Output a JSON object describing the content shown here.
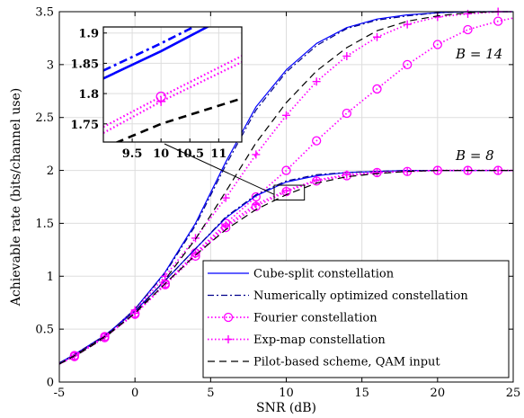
{
  "chart_data": {
    "type": "line",
    "xlabel": "SNR (dB)",
    "ylabel": "Achievable rate (bits/channel use)",
    "xlim": [
      -5,
      25
    ],
    "ylim": [
      0,
      3.5
    ],
    "xticks": [
      -5,
      0,
      5,
      10,
      15,
      20,
      25
    ],
    "yticks": [
      0,
      0.5,
      1,
      1.5,
      2,
      2.5,
      3,
      3.5
    ],
    "xtick_labels": [
      "-5",
      "0",
      "5",
      "10",
      "15",
      "20",
      "25"
    ],
    "ytick_labels": [
      "0",
      "0.5",
      "1",
      "1.5",
      "2",
      "2.5",
      "3",
      "3.5"
    ],
    "grid": true,
    "legend_position": "bottom-right",
    "annotations": [
      {
        "text": "B = 14",
        "x": 21.2,
        "y": 3.06
      },
      {
        "text": "B = 8",
        "x": 21.2,
        "y": 2.1
      }
    ],
    "series": [
      {
        "name": "Cube-split constellation",
        "group": "B = 14",
        "style": "solid",
        "color": "#0000ff",
        "marker": "none",
        "x": [
          -5,
          -4,
          -2,
          0,
          2,
          4,
          6,
          8,
          10,
          12,
          14,
          16,
          18,
          20,
          22,
          24,
          25
        ],
        "y": [
          0.18,
          0.25,
          0.43,
          0.69,
          1.04,
          1.5,
          2.08,
          2.6,
          2.95,
          3.2,
          3.35,
          3.43,
          3.47,
          3.49,
          3.5,
          3.5,
          3.5
        ]
      },
      {
        "name": "Numerically optimized constellation",
        "group": "B = 14",
        "style": "dashdot",
        "color": "#00008b",
        "marker": "none",
        "x": [
          -5,
          -4,
          -2,
          0,
          2,
          4,
          6,
          8,
          10,
          12,
          14,
          16,
          18,
          20,
          22,
          24,
          25
        ],
        "y": [
          0.18,
          0.25,
          0.43,
          0.69,
          1.03,
          1.48,
          2.05,
          2.57,
          2.93,
          3.18,
          3.34,
          3.42,
          3.46,
          3.49,
          3.5,
          3.5,
          3.5
        ]
      },
      {
        "name": "Fourier constellation",
        "group": "B = 14",
        "style": "dotted",
        "color": "#ff00ff",
        "marker": "circle",
        "x": [
          -5,
          -4,
          -2,
          0,
          2,
          4,
          6,
          8,
          10,
          12,
          14,
          16,
          18,
          20,
          22,
          24,
          25
        ],
        "y": [
          0.17,
          0.24,
          0.42,
          0.65,
          0.93,
          1.22,
          1.5,
          1.75,
          2.0,
          2.28,
          2.54,
          2.77,
          3.0,
          3.19,
          3.33,
          3.41,
          3.44
        ]
      },
      {
        "name": "Exp-map constellation",
        "group": "B = 14",
        "style": "dotted",
        "color": "#ff00ff",
        "marker": "plus",
        "x": [
          -5,
          -4,
          -2,
          0,
          2,
          4,
          6,
          8,
          10,
          12,
          14,
          16,
          18,
          20,
          22,
          24,
          25
        ],
        "y": [
          0.18,
          0.25,
          0.43,
          0.68,
          1.0,
          1.36,
          1.74,
          2.15,
          2.52,
          2.84,
          3.08,
          3.26,
          3.38,
          3.45,
          3.48,
          3.5,
          3.5
        ]
      },
      {
        "name": "Pilot-based scheme, QAM input",
        "group": "B = 14",
        "style": "dashed",
        "color": "#000000",
        "marker": "none",
        "x": [
          -5,
          -4,
          -2,
          0,
          2,
          4,
          6,
          8,
          10,
          12,
          14,
          16,
          18,
          20,
          22,
          24,
          25
        ],
        "y": [
          0.17,
          0.24,
          0.42,
          0.65,
          0.97,
          1.35,
          1.8,
          2.26,
          2.64,
          2.94,
          3.16,
          3.32,
          3.41,
          3.46,
          3.49,
          3.5,
          3.5
        ]
      },
      {
        "name": "Cube-split constellation",
        "group": "B = 8",
        "style": "solid",
        "color": "#0000ff",
        "marker": "none",
        "x": [
          -5,
          -4,
          -2,
          0,
          2,
          4,
          6,
          8,
          10,
          12,
          14,
          16,
          18,
          20,
          22,
          24,
          25
        ],
        "y": [
          0.18,
          0.26,
          0.44,
          0.67,
          0.96,
          1.26,
          1.55,
          1.76,
          1.89,
          1.95,
          1.98,
          1.99,
          2.0,
          2.0,
          2.0,
          2.0,
          2.0
        ]
      },
      {
        "name": "Numerically optimized constellation",
        "group": "B = 8",
        "style": "dashdot",
        "color": "#00008b",
        "marker": "none",
        "x": [
          -5,
          -4,
          -2,
          0,
          2,
          4,
          6,
          8,
          10,
          12,
          14,
          16,
          18,
          20,
          22,
          24,
          25
        ],
        "y": [
          0.18,
          0.26,
          0.44,
          0.67,
          0.96,
          1.26,
          1.56,
          1.77,
          1.9,
          1.96,
          1.98,
          1.99,
          2.0,
          2.0,
          2.0,
          2.0,
          2.0
        ]
      },
      {
        "name": "Fourier constellation",
        "group": "B = 8",
        "style": "dotted",
        "color": "#ff00ff",
        "marker": "circle",
        "x": [
          -5,
          -4,
          -2,
          0,
          2,
          4,
          6,
          8,
          10,
          12,
          14,
          16,
          18,
          20,
          22,
          24,
          25
        ],
        "y": [
          0.17,
          0.25,
          0.43,
          0.64,
          0.92,
          1.19,
          1.46,
          1.66,
          1.8,
          1.9,
          1.95,
          1.98,
          1.99,
          2.0,
          2.0,
          2.0,
          2.0
        ]
      },
      {
        "name": "Exp-map constellation",
        "group": "B = 8",
        "style": "dotted",
        "color": "#ff00ff",
        "marker": "plus",
        "x": [
          -5,
          -4,
          -2,
          0,
          2,
          4,
          6,
          8,
          10,
          12,
          14,
          16,
          18,
          20,
          22,
          24,
          25
        ],
        "y": [
          0.17,
          0.25,
          0.43,
          0.65,
          0.93,
          1.21,
          1.48,
          1.68,
          1.81,
          1.91,
          1.96,
          1.98,
          1.99,
          2.0,
          2.0,
          2.0,
          2.0
        ]
      },
      {
        "name": "Pilot-based scheme, QAM input",
        "group": "B = 8",
        "style": "dashed",
        "color": "#000000",
        "marker": "none",
        "x": [
          -5,
          -4,
          -2,
          0,
          2,
          4,
          6,
          8,
          10,
          12,
          14,
          16,
          18,
          20,
          22,
          24,
          25
        ],
        "y": [
          0.17,
          0.25,
          0.43,
          0.65,
          0.93,
          1.2,
          1.44,
          1.63,
          1.77,
          1.88,
          1.94,
          1.97,
          1.99,
          2.0,
          2.0,
          2.0,
          2.0
        ]
      }
    ],
    "inset": {
      "xlim": [
        9,
        11.4
      ],
      "ylim": [
        1.72,
        1.91
      ],
      "xticks": [
        9.5,
        10,
        10.5,
        11
      ],
      "yticks": [
        1.75,
        1.8,
        1.85,
        1.9
      ],
      "xtick_labels": [
        "9.5",
        "10",
        "10.5",
        "11"
      ],
      "ytick_labels": [
        "1.75",
        "1.8",
        "1.85",
        "1.9"
      ],
      "zoom_box": {
        "x": [
          9.2,
          11.2
        ],
        "y": [
          1.72,
          1.86
        ]
      },
      "series": [
        {
          "name": "Cube-split constellation",
          "style": "solid",
          "color": "#0000ff",
          "marker": "none",
          "x": [
            9,
            10,
            11.4
          ],
          "y": [
            1.825,
            1.87,
            1.94
          ]
        },
        {
          "name": "Numerically optimized constellation",
          "style": "dashdot",
          "color": "#0000ff",
          "marker": "none",
          "x": [
            9,
            10,
            11.4
          ],
          "y": [
            1.838,
            1.883,
            1.95
          ]
        },
        {
          "name": "Fourier constellation",
          "style": "dotted",
          "color": "#ff00ff",
          "marker": "circle",
          "x": [
            9,
            10,
            11.4
          ],
          "y": [
            1.745,
            1.795,
            1.862
          ]
        },
        {
          "name": "Exp-map constellation",
          "style": "dotted",
          "color": "#ff00ff",
          "marker": "plus",
          "x": [
            9,
            10,
            11.4
          ],
          "y": [
            1.735,
            1.787,
            1.852
          ]
        },
        {
          "name": "Pilot-based scheme, QAM input",
          "style": "dashed",
          "color": "#000000",
          "marker": "none",
          "x": [
            9,
            10,
            11.4
          ],
          "y": [
            1.71,
            1.75,
            1.792
          ]
        }
      ]
    }
  }
}
